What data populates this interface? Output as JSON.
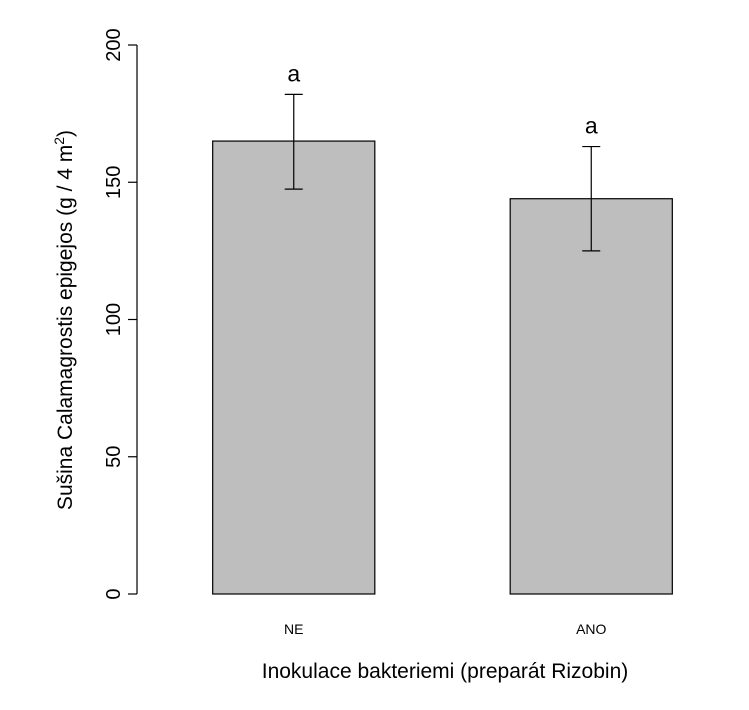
{
  "chart_data": {
    "type": "bar",
    "categories": [
      "NE",
      "ANO"
    ],
    "values": [
      165,
      144
    ],
    "error_lower": [
      147.5,
      125
    ],
    "error_upper": [
      182,
      163
    ],
    "significance_labels": [
      "a",
      "a"
    ],
    "xlabel": "Inokulace bakteriemi (preparát Rizobin)",
    "ylabel_main": "Sušina Calamagrostis epigejos (g / 4 m",
    "ylabel_sup": "2",
    "ylabel_end": ")",
    "ylim": [
      0,
      200
    ],
    "yticks": [
      0,
      50,
      100,
      150,
      200
    ],
    "bar_color": "#bebebe",
    "grid": false
  }
}
